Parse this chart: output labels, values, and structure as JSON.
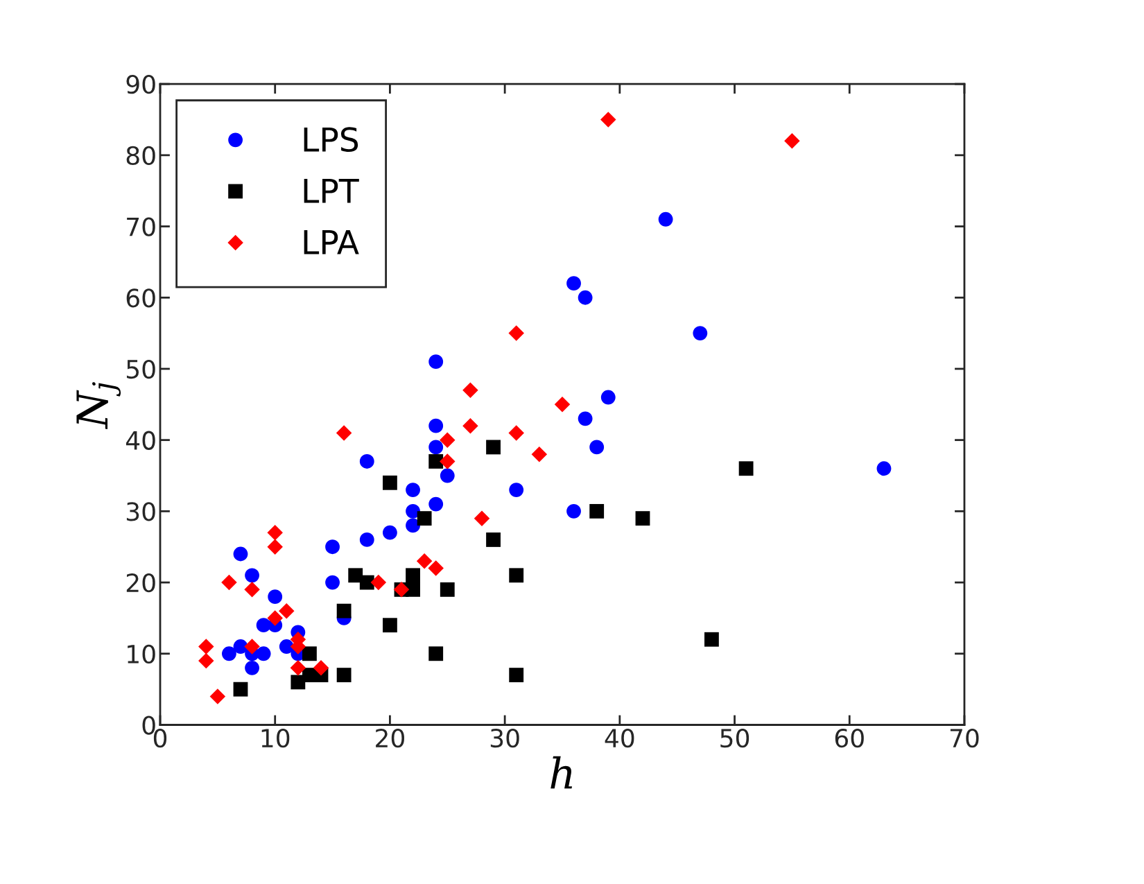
{
  "chart_data": {
    "type": "scatter",
    "xlabel": "h",
    "ylabel": "N$_{j}$",
    "xlim": [
      0,
      70
    ],
    "ylim": [
      0,
      90
    ],
    "xticks": [
      0,
      10,
      20,
      30,
      40,
      50,
      60,
      70
    ],
    "yticks": [
      0,
      10,
      20,
      30,
      40,
      50,
      60,
      70,
      80,
      90
    ],
    "grid": false,
    "legend": "top left",
    "series": [
      {
        "name": "LPS",
        "color": "#0000ff",
        "marker": "circle",
        "x": [
          6,
          7,
          7,
          8,
          8,
          8,
          9,
          9,
          10,
          10,
          11,
          12,
          12,
          15,
          15,
          16,
          18,
          18,
          20,
          22,
          22,
          22,
          24,
          24,
          24,
          24,
          25,
          31,
          36,
          37,
          36,
          37,
          38,
          39,
          44,
          47,
          63
        ],
        "values": [
          10,
          11,
          24,
          21,
          10,
          8,
          14,
          10,
          18,
          14,
          11,
          13,
          10,
          25,
          20,
          15,
          37,
          26,
          27,
          33,
          30,
          28,
          51,
          42,
          39,
          31,
          35,
          33,
          62,
          60,
          30,
          43,
          39,
          46,
          71,
          55,
          36
        ]
      },
      {
        "name": "LPT",
        "color": "#000000",
        "marker": "square",
        "x": [
          7,
          12,
          13,
          13,
          14,
          16,
          16,
          17,
          18,
          20,
          20,
          21,
          22,
          22,
          23,
          24,
          24,
          25,
          29,
          29,
          31,
          31,
          38,
          42,
          48,
          51
        ],
        "values": [
          5,
          6,
          10,
          7,
          7,
          7,
          16,
          21,
          20,
          34,
          14,
          19,
          21,
          19,
          29,
          37,
          10,
          19,
          39,
          26,
          21,
          7,
          30,
          29,
          12,
          36
        ]
      },
      {
        "name": "LPA",
        "color": "#ff0000",
        "marker": "diamond",
        "x": [
          4,
          4,
          5,
          6,
          8,
          8,
          10,
          10,
          10,
          11,
          12,
          12,
          12,
          14,
          16,
          19,
          21,
          23,
          24,
          25,
          25,
          27,
          27,
          28,
          31,
          31,
          33,
          35,
          39,
          55
        ],
        "values": [
          11,
          9,
          4,
          20,
          19,
          11,
          27,
          25,
          15,
          16,
          12,
          11,
          8,
          8,
          41,
          20,
          19,
          23,
          22,
          40,
          37,
          47,
          42,
          29,
          55,
          41,
          38,
          45,
          85,
          82
        ]
      }
    ]
  }
}
